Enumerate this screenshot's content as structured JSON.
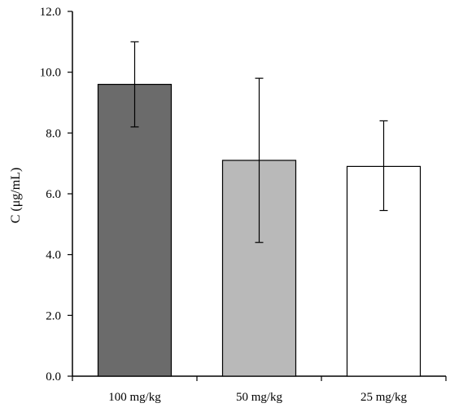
{
  "chart_data": {
    "type": "bar",
    "categories": [
      "100 mg/kg",
      "50 mg/kg",
      "25 mg/kg"
    ],
    "values": [
      9.6,
      7.1,
      6.9
    ],
    "error_low": [
      8.2,
      4.4,
      5.45
    ],
    "error_high": [
      11.0,
      9.8,
      8.4
    ],
    "bar_colors": [
      "#6b6b6b",
      "#b9b9b9",
      "#ffffff"
    ],
    "ylabel": "C (μg/mL)",
    "xlabel": "",
    "title": "",
    "ylim": [
      0,
      12
    ],
    "yticks": [
      "0.0",
      "2.0",
      "4.0",
      "6.0",
      "8.0",
      "10.0",
      "12.0"
    ],
    "grid": false,
    "legend": "none"
  }
}
